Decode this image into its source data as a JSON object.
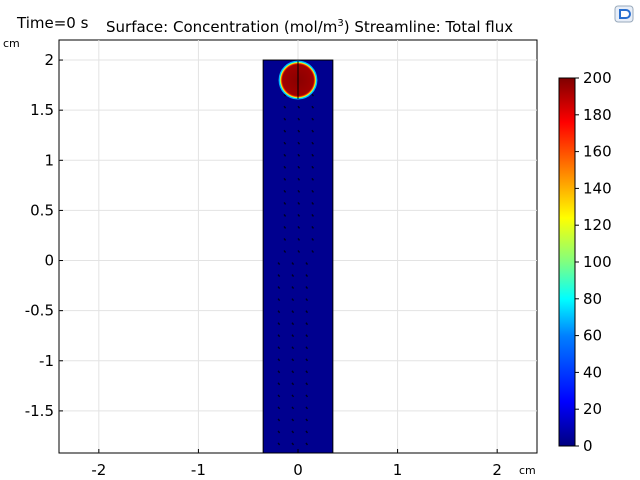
{
  "chart_data": {
    "type": "heatmap",
    "time_label": "Time=0 s",
    "title_parts": {
      "prefix": "Surface: Concentration (mol/m",
      "superscript": "3",
      "suffix": ")  Streamline: Total flux"
    },
    "x_unit": "cm",
    "y_unit": "cm",
    "xlim": [
      -2.4,
      2.4
    ],
    "ylim": [
      -1.92,
      2.2
    ],
    "x_ticks": [
      -2,
      -1,
      0,
      1,
      2
    ],
    "x_tick_labels": [
      "-2",
      "-1",
      "0",
      "1",
      "2"
    ],
    "y_ticks": [
      2,
      1.5,
      1,
      0.5,
      0,
      -0.5,
      -1,
      -1.5
    ],
    "y_tick_labels": [
      "2",
      "1.5",
      "1",
      "0.5",
      "0",
      "-0.5",
      "-1",
      "-1.5"
    ],
    "grid": true,
    "domain_rect": {
      "x": [
        -0.35,
        0.35
      ],
      "y": [
        -1.92,
        2.0
      ]
    },
    "droplet": {
      "center": [
        0.0,
        1.8
      ],
      "radius": 0.19,
      "value": 200
    },
    "background_value": 0,
    "colorbar": {
      "min": 0,
      "max": 200,
      "ticks": [
        200,
        180,
        160,
        140,
        120,
        100,
        80,
        60,
        40,
        20,
        0
      ],
      "tick_labels": [
        "200",
        "180",
        "160",
        "140",
        "120",
        "100",
        "80",
        "60",
        "40",
        "20",
        "0"
      ],
      "colormap": [
        "#00007f",
        "#0000ff",
        "#0080ff",
        "#00ffff",
        "#80ff80",
        "#ffff00",
        "#ff8000",
        "#ff0000",
        "#7f0000"
      ]
    }
  }
}
